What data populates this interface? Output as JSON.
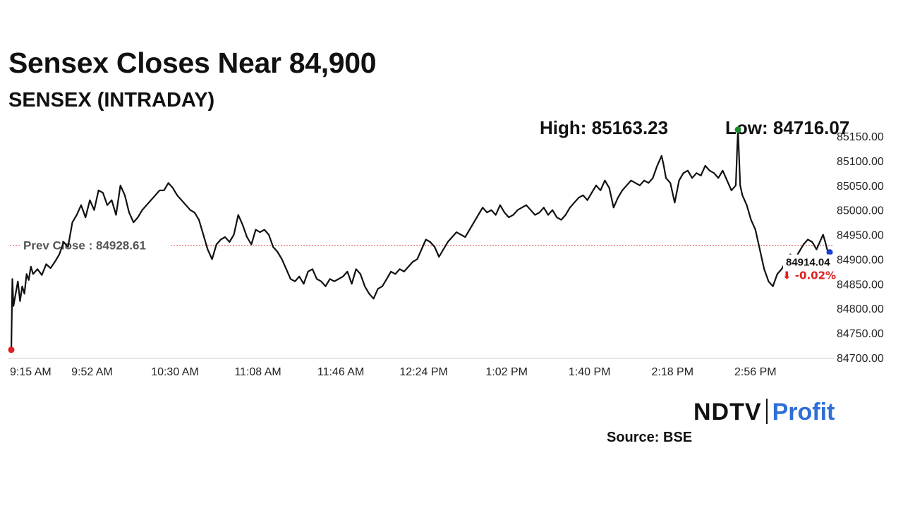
{
  "title": "Sensex Closes Near 84,900",
  "subtitle": "SENSEX (INTRADAY)",
  "stats": {
    "high_label": "High: 85163.23",
    "low_label": "Low: 84716.07"
  },
  "brand": {
    "ndtv": "NDTV",
    "profit_main": "Profit",
    "profit_accent": ""
  },
  "source": "Source: BSE",
  "colors": {
    "line": "#111111",
    "prev_close_line": "#e0504a",
    "high_marker": "#1a8c2a",
    "low_marker": "#e02020",
    "last_marker": "#1a3fd6",
    "change_down": "#e02020"
  },
  "chart_data": {
    "type": "line",
    "title": "SENSEX (INTRADAY)",
    "x_unit": "minutes_since_open",
    "x_ticks": [
      "9:15 AM",
      "9:52 AM",
      "10:30 AM",
      "11:08 AM",
      "11:46 AM",
      "12:24 PM",
      "1:02 PM",
      "1:40 PM",
      "2:18 PM",
      "2:56 PM"
    ],
    "x_tick_values": [
      0,
      37,
      75,
      113,
      151,
      189,
      227,
      265,
      303,
      341
    ],
    "x_range": [
      0,
      375
    ],
    "y_ticks": [
      "84700.00",
      "84750.00",
      "84800.00",
      "84850.00",
      "84900.00",
      "84950.00",
      "85000.00",
      "85050.00",
      "85100.00",
      "85150.00"
    ],
    "y_tick_values": [
      84700,
      84750,
      84800,
      84850,
      84900,
      84950,
      85000,
      85050,
      85100,
      85150
    ],
    "ylim": [
      84700,
      85150
    ],
    "grid": false,
    "prev_close": 84928.61,
    "prev_close_label": "Prev Close : 84928.61",
    "last_value_label": "84914.04",
    "change_label": "⬇ -0.02%",
    "markers": {
      "low": {
        "x": 0,
        "y": 84716.07
      },
      "high": {
        "x": 333,
        "y": 85163.23
      },
      "last": {
        "x": 375,
        "y": 84914.04
      }
    },
    "series": [
      {
        "values": [
          [
            0,
            84716.07
          ],
          [
            0.5,
            84860
          ],
          [
            1,
            84805
          ],
          [
            2,
            84830
          ],
          [
            3,
            84855
          ],
          [
            4,
            84815
          ],
          [
            5,
            84845
          ],
          [
            6,
            84830
          ],
          [
            7,
            84870
          ],
          [
            8,
            84858
          ],
          [
            9,
            84885
          ],
          [
            10,
            84870
          ],
          [
            12,
            84880
          ],
          [
            14,
            84868
          ],
          [
            16,
            84890
          ],
          [
            18,
            84882
          ],
          [
            20,
            84895
          ],
          [
            22,
            84910
          ],
          [
            24,
            84935
          ],
          [
            26,
            84925
          ],
          [
            28,
            84975
          ],
          [
            30,
            84990
          ],
          [
            32,
            85010
          ],
          [
            34,
            84985
          ],
          [
            36,
            85020
          ],
          [
            38,
            85000
          ],
          [
            40,
            85040
          ],
          [
            42,
            85035
          ],
          [
            44,
            85010
          ],
          [
            46,
            85020
          ],
          [
            48,
            84990
          ],
          [
            50,
            85050
          ],
          [
            52,
            85030
          ],
          [
            54,
            84995
          ],
          [
            56,
            84975
          ],
          [
            58,
            84985
          ],
          [
            60,
            85000
          ],
          [
            62,
            85010
          ],
          [
            64,
            85020
          ],
          [
            66,
            85030
          ],
          [
            68,
            85040
          ],
          [
            70,
            85040
          ],
          [
            72,
            85055
          ],
          [
            74,
            85045
          ],
          [
            76,
            85030
          ],
          [
            78,
            85020
          ],
          [
            80,
            85010
          ],
          [
            82,
            85000
          ],
          [
            84,
            84995
          ],
          [
            86,
            84980
          ],
          [
            88,
            84950
          ],
          [
            90,
            84920
          ],
          [
            92,
            84900
          ],
          [
            94,
            84930
          ],
          [
            96,
            84940
          ],
          [
            98,
            84945
          ],
          [
            100,
            84935
          ],
          [
            102,
            84950
          ],
          [
            104,
            84990
          ],
          [
            106,
            84970
          ],
          [
            108,
            84945
          ],
          [
            110,
            84930
          ],
          [
            112,
            84960
          ],
          [
            114,
            84955
          ],
          [
            116,
            84960
          ],
          [
            118,
            84950
          ],
          [
            120,
            84925
          ],
          [
            122,
            84915
          ],
          [
            124,
            84900
          ],
          [
            126,
            84880
          ],
          [
            128,
            84860
          ],
          [
            130,
            84855
          ],
          [
            132,
            84865
          ],
          [
            134,
            84850
          ],
          [
            136,
            84875
          ],
          [
            138,
            84880
          ],
          [
            140,
            84860
          ],
          [
            142,
            84855
          ],
          [
            144,
            84845
          ],
          [
            146,
            84860
          ],
          [
            148,
            84855
          ],
          [
            150,
            84860
          ],
          [
            152,
            84865
          ],
          [
            154,
            84875
          ],
          [
            156,
            84850
          ],
          [
            158,
            84880
          ],
          [
            160,
            84870
          ],
          [
            162,
            84845
          ],
          [
            164,
            84830
          ],
          [
            166,
            84820
          ],
          [
            168,
            84840
          ],
          [
            170,
            84845
          ],
          [
            172,
            84860
          ],
          [
            174,
            84875
          ],
          [
            176,
            84870
          ],
          [
            178,
            84880
          ],
          [
            180,
            84875
          ],
          [
            182,
            84885
          ],
          [
            184,
            84895
          ],
          [
            186,
            84900
          ],
          [
            188,
            84920
          ],
          [
            190,
            84940
          ],
          [
            192,
            84935
          ],
          [
            194,
            84925
          ],
          [
            196,
            84905
          ],
          [
            198,
            84920
          ],
          [
            200,
            84935
          ],
          [
            202,
            84945
          ],
          [
            204,
            84955
          ],
          [
            206,
            84950
          ],
          [
            208,
            84945
          ],
          [
            210,
            84960
          ],
          [
            212,
            84975
          ],
          [
            214,
            84990
          ],
          [
            216,
            85005
          ],
          [
            218,
            84995
          ],
          [
            220,
            85000
          ],
          [
            222,
            84990
          ],
          [
            224,
            85010
          ],
          [
            226,
            84995
          ],
          [
            228,
            84985
          ],
          [
            230,
            84990
          ],
          [
            232,
            85000
          ],
          [
            234,
            85005
          ],
          [
            236,
            85010
          ],
          [
            238,
            85000
          ],
          [
            240,
            84990
          ],
          [
            242,
            84995
          ],
          [
            244,
            85005
          ],
          [
            246,
            84990
          ],
          [
            248,
            85000
          ],
          [
            250,
            84985
          ],
          [
            252,
            84980
          ],
          [
            254,
            84990
          ],
          [
            256,
            85005
          ],
          [
            258,
            85015
          ],
          [
            260,
            85025
          ],
          [
            262,
            85030
          ],
          [
            264,
            85020
          ],
          [
            266,
            85035
          ],
          [
            268,
            85050
          ],
          [
            270,
            85040
          ],
          [
            272,
            85060
          ],
          [
            274,
            85045
          ],
          [
            276,
            85005
          ],
          [
            278,
            85025
          ],
          [
            280,
            85040
          ],
          [
            282,
            85050
          ],
          [
            284,
            85060
          ],
          [
            286,
            85055
          ],
          [
            288,
            85050
          ],
          [
            290,
            85060
          ],
          [
            292,
            85055
          ],
          [
            294,
            85065
          ],
          [
            296,
            85090
          ],
          [
            298,
            85110
          ],
          [
            299,
            85090
          ],
          [
            300,
            85065
          ],
          [
            302,
            85055
          ],
          [
            304,
            85015
          ],
          [
            306,
            85060
          ],
          [
            308,
            85075
          ],
          [
            310,
            85080
          ],
          [
            312,
            85065
          ],
          [
            314,
            85075
          ],
          [
            316,
            85070
          ],
          [
            318,
            85090
          ],
          [
            320,
            85080
          ],
          [
            322,
            85075
          ],
          [
            324,
            85065
          ],
          [
            326,
            85080
          ],
          [
            328,
            85060
          ],
          [
            330,
            85040
          ],
          [
            332,
            85050
          ],
          [
            332.6,
            85120
          ],
          [
            333,
            85163.23
          ],
          [
            333.5,
            85110
          ],
          [
            334,
            85050
          ],
          [
            335,
            85030
          ],
          [
            337,
            85010
          ],
          [
            339,
            84980
          ],
          [
            341,
            84960
          ],
          [
            343,
            84920
          ],
          [
            345,
            84880
          ],
          [
            347,
            84855
          ],
          [
            349,
            84845
          ],
          [
            351,
            84870
          ],
          [
            353,
            84880
          ],
          [
            355,
            84895
          ],
          [
            357,
            84910
          ],
          [
            359,
            84900
          ],
          [
            361,
            84915
          ],
          [
            363,
            84930
          ],
          [
            365,
            84940
          ],
          [
            367,
            84935
          ],
          [
            369,
            84920
          ],
          [
            371,
            84940
          ],
          [
            372,
            84950
          ],
          [
            373,
            84935
          ],
          [
            374,
            84918
          ],
          [
            375,
            84914.04
          ]
        ]
      }
    ]
  }
}
